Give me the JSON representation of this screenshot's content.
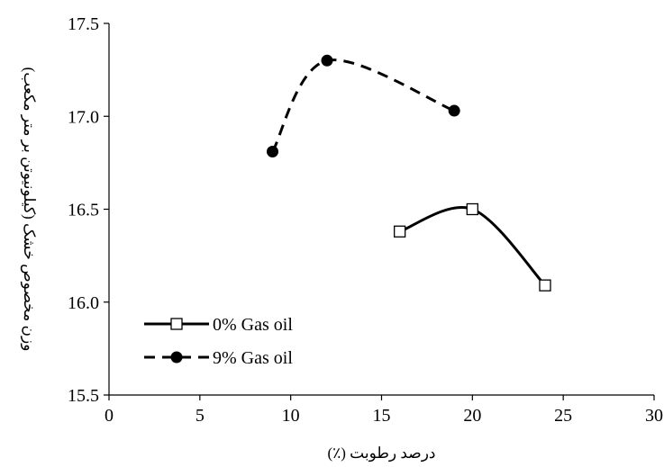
{
  "chart_data": {
    "type": "line",
    "title": "",
    "xlabel": "درصد رطوبت (٪)",
    "ylabel": "وزن مخصوص خشک (کیلونیوتن بر متر مکعب)",
    "xlim": [
      0,
      30
    ],
    "ylim": [
      15.5,
      17.5
    ],
    "xticks": [
      0,
      5,
      10,
      15,
      20,
      25,
      30
    ],
    "yticks": [
      15.5,
      16.0,
      16.5,
      17.0,
      17.5
    ],
    "ytick_labels": [
      "15.5",
      "16.0",
      "16.5",
      "17.0",
      "17.5"
    ],
    "grid": false,
    "legend_position": "bottom-left",
    "series": [
      {
        "name": "0% Gas oil",
        "x": [
          16,
          20,
          24
        ],
        "y": [
          16.38,
          16.5,
          16.09
        ],
        "line_style": "solid",
        "marker": "open-square",
        "smooth": true,
        "color": "#000000"
      },
      {
        "name": "9% Gas oil",
        "x": [
          9,
          12,
          19
        ],
        "y": [
          16.81,
          17.3,
          17.03
        ],
        "line_style": "dashed",
        "marker": "filled-circle",
        "smooth": true,
        "color": "#000000"
      }
    ]
  }
}
